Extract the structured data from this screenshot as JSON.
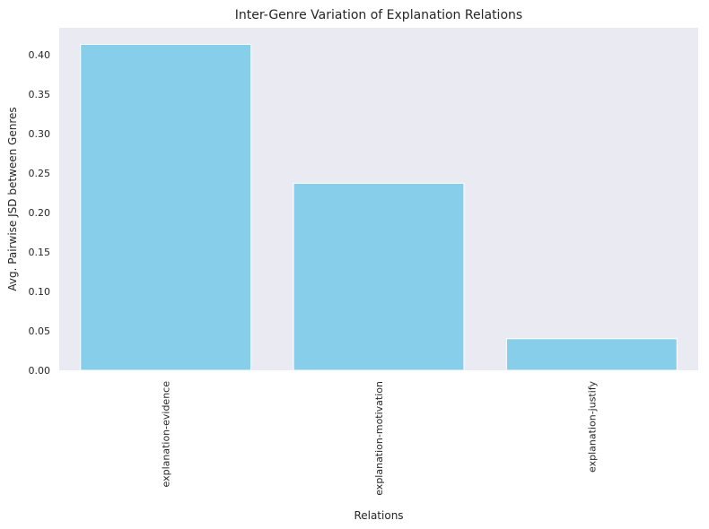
{
  "chart_data": {
    "type": "bar",
    "title": "Inter-Genre Variation of Explanation Relations",
    "xlabel": "Relations",
    "ylabel": "Avg. Pairwise JSD between Genres",
    "categories": [
      "explanation-evidence",
      "explanation-motivation",
      "explanation-justify"
    ],
    "values": [
      0.413,
      0.237,
      0.04
    ],
    "ylim": [
      0,
      0.434
    ],
    "yticks": [
      "0.00",
      "0.05",
      "0.10",
      "0.15",
      "0.20",
      "0.25",
      "0.30",
      "0.35",
      "0.40"
    ],
    "grid": false,
    "bar_color": "#87ceeb",
    "plot_background": "#eaeaf2"
  }
}
